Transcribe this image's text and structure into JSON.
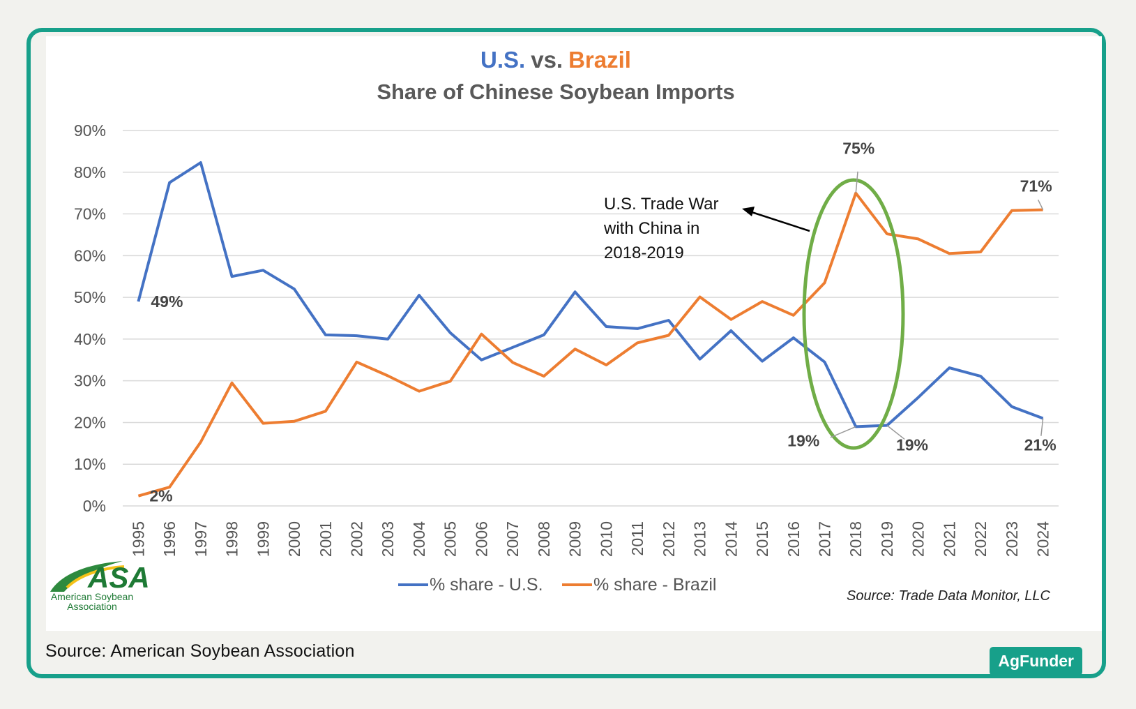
{
  "caption": "Source: American Soybean Association",
  "brand": "AgFunder",
  "colors": {
    "us": "#4472c4",
    "brazil": "#ed7d31",
    "highlight": "#70ad47",
    "border": "#17a08a"
  },
  "chart_data": {
    "type": "line",
    "title_parts": {
      "us": "U.S.",
      "vs": "vs.",
      "brazil": "Brazil"
    },
    "subtitle": "Share of Chinese Soybean Imports",
    "x": [
      1995,
      1996,
      1997,
      1998,
      1999,
      2000,
      2001,
      2002,
      2003,
      2004,
      2005,
      2006,
      2007,
      2008,
      2009,
      2010,
      2011,
      2012,
      2013,
      2014,
      2015,
      2016,
      2017,
      2018,
      2019,
      2020,
      2021,
      2022,
      2023,
      2024
    ],
    "series": [
      {
        "name": "% share - U.S.",
        "color": "#4472c4",
        "values": [
          49,
          77.5,
          82.3,
          55,
          56.5,
          52,
          41,
          40.8,
          40,
          50.5,
          41.5,
          35,
          38,
          41,
          51.3,
          43,
          42.5,
          44.5,
          35.2,
          42,
          34.7,
          40.3,
          34.5,
          19,
          19.3,
          26,
          33.1,
          31.1,
          23.8,
          21
        ]
      },
      {
        "name": "% share - Brazil",
        "color": "#ed7d31",
        "values": [
          2.4,
          4.5,
          15.3,
          29.5,
          19.8,
          20.3,
          22.7,
          34.5,
          31.2,
          27.5,
          29.9,
          41.2,
          34.4,
          31.1,
          37.6,
          33.8,
          39.1,
          40.9,
          50.1,
          44.7,
          49,
          45.7,
          53.5,
          75,
          65.2,
          64,
          60.5,
          60.9,
          70.8,
          71
        ]
      }
    ],
    "y_ticks": [
      "0%",
      "10%",
      "20%",
      "30%",
      "40%",
      "50%",
      "60%",
      "70%",
      "80%",
      "90%"
    ],
    "ylim": [
      0,
      90
    ],
    "y_step": 10,
    "data_labels": [
      {
        "text": "49%",
        "series": 0,
        "year": 1995
      },
      {
        "text": "2%",
        "series": 1,
        "year": 1995
      },
      {
        "text": "75%",
        "series": 1,
        "year": 2018
      },
      {
        "text": "19%",
        "series": 0,
        "year": 2018
      },
      {
        "text": "19%",
        "series": 0,
        "year": 2019
      },
      {
        "text": "71%",
        "series": 1,
        "year": 2024
      },
      {
        "text": "21%",
        "series": 0,
        "year": 2024
      }
    ],
    "annotation": [
      "U.S. Trade War",
      "with China in",
      "2018-2019"
    ],
    "source_note": "Source: Trade Data Monitor, LLC",
    "logo": {
      "mark": "ASA",
      "line1": "American Soybean",
      "line2": "Association"
    },
    "grid": true,
    "legend_position": "bottom"
  }
}
